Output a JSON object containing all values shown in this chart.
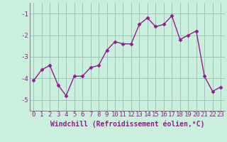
{
  "x": [
    0,
    1,
    2,
    3,
    4,
    5,
    6,
    7,
    8,
    9,
    10,
    11,
    12,
    13,
    14,
    15,
    16,
    17,
    18,
    19,
    20,
    21,
    22,
    23
  ],
  "y": [
    -4.1,
    -3.6,
    -3.4,
    -4.3,
    -4.8,
    -3.9,
    -3.9,
    -3.5,
    -3.4,
    -2.7,
    -2.3,
    -2.4,
    -2.4,
    -1.5,
    -1.2,
    -1.6,
    -1.5,
    -1.1,
    -2.2,
    -2.0,
    -1.8,
    -3.9,
    -4.6,
    -4.4
  ],
  "line_color": "#882288",
  "marker": "D",
  "marker_size": 2.5,
  "bg_color": "#cceedd",
  "grid_color": "#99bbbb",
  "xlabel": "Windchill (Refroidissement éolien,°C)",
  "xlim": [
    -0.5,
    23.5
  ],
  "ylim": [
    -5.5,
    -0.5
  ],
  "yticks": [
    -5,
    -4,
    -3,
    -2,
    -1
  ],
  "xticks": [
    0,
    1,
    2,
    3,
    4,
    5,
    6,
    7,
    8,
    9,
    10,
    11,
    12,
    13,
    14,
    15,
    16,
    17,
    18,
    19,
    20,
    21,
    22,
    23
  ],
  "xlabel_fontsize": 7.0,
  "tick_fontsize": 6.5,
  "tick_color": "#882288",
  "spine_color": "#888888",
  "linewidth": 1.0
}
